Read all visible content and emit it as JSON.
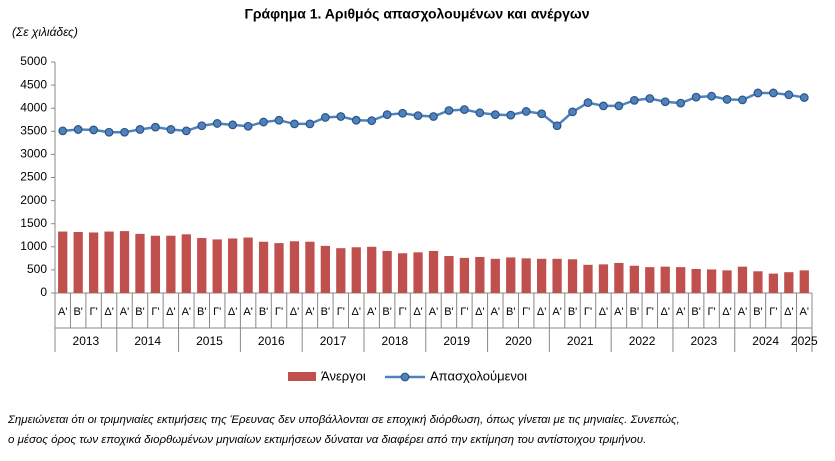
{
  "chart_data": {
    "type": "bar_line",
    "title": "Γράφημα 1. Αριθμός απασχολουμένων και ανέργων",
    "subtitle": "(Σε χιλιάδες)",
    "categories": [
      "Α'",
      "Β'",
      "Γ'",
      "Δ'",
      "Α'",
      "Β'",
      "Γ'",
      "Δ'",
      "Α'",
      "Β'",
      "Γ'",
      "Δ'",
      "Α'",
      "Β'",
      "Γ'",
      "Δ'",
      "Α'",
      "Β'",
      "Γ'",
      "Δ'",
      "Α'",
      "Β'",
      "Γ'",
      "Δ'",
      "Α'",
      "Β'",
      "Γ'",
      "Δ'",
      "Α'",
      "Β'",
      "Γ'",
      "Δ'",
      "Α'",
      "Β'",
      "Γ'",
      "Δ'",
      "Α'",
      "Β'",
      "Γ'",
      "Δ'",
      "Α'",
      "Β'",
      "Γ'",
      "Δ'",
      "Α'",
      "Β'",
      "Γ'",
      "Δ'",
      "Α'"
    ],
    "years": [
      "2013",
      "2014",
      "2015",
      "2016",
      "2017",
      "2018",
      "2019",
      "2020",
      "2021",
      "2022",
      "2023",
      "2024",
      "2025"
    ],
    "series": [
      {
        "name": "Άνεργοι",
        "type": "bar",
        "color": "#c0504d",
        "values": [
          1330,
          1320,
          1310,
          1330,
          1340,
          1280,
          1240,
          1240,
          1270,
          1190,
          1160,
          1180,
          1200,
          1110,
          1080,
          1120,
          1110,
          1020,
          970,
          990,
          1000,
          910,
          860,
          880,
          910,
          800,
          760,
          780,
          740,
          770,
          750,
          740,
          740,
          730,
          610,
          620,
          650,
          590,
          560,
          570,
          560,
          520,
          510,
          490,
          570,
          470,
          420,
          450,
          490
        ]
      },
      {
        "name": "Απασχολούμενοι",
        "type": "line",
        "color": "#4f81bd",
        "values": [
          3510,
          3540,
          3530,
          3480,
          3480,
          3540,
          3590,
          3540,
          3510,
          3620,
          3670,
          3640,
          3610,
          3700,
          3740,
          3660,
          3660,
          3800,
          3820,
          3740,
          3730,
          3860,
          3890,
          3840,
          3820,
          3950,
          3970,
          3900,
          3860,
          3850,
          3930,
          3880,
          3620,
          3920,
          4120,
          4050,
          4050,
          4170,
          4210,
          4140,
          4110,
          4240,
          4260,
          4190,
          4180,
          4330,
          4330,
          4290,
          4230
        ]
      }
    ],
    "ylim": [
      0,
      5000
    ],
    "yticks": [
      0,
      500,
      1000,
      1500,
      2000,
      2500,
      3000,
      3500,
      4000,
      4500,
      5000
    ],
    "grid": false,
    "legend": "bottom",
    "note": [
      "Σημειώνεται ότι οι τριμηνιαίες εκτιμήσεις της Έρευνας δεν υποβάλλονται σε εποχική διόρθωση, όπως γίνεται με τις μηνιαίες. Συνεπώς,",
      "ο μέσος όρος των εποχικά διορθωμένων μηνιαίων εκτιμήσεων δύναται να διαφέρει από την εκτίμηση του αντίστοιχου τριμήνου."
    ]
  }
}
